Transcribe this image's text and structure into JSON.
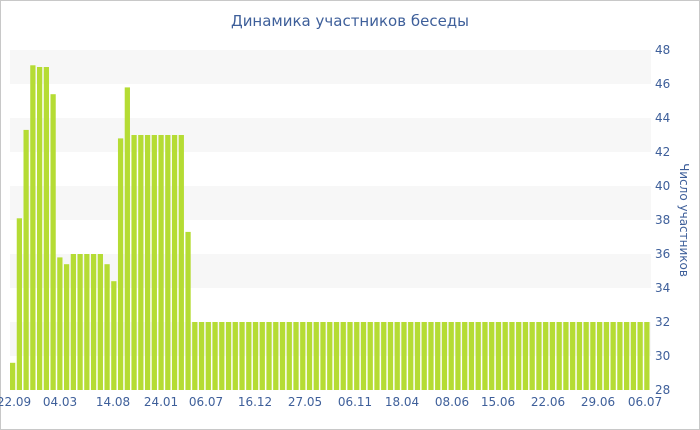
{
  "chart_data": {
    "type": "bar",
    "title": "Динамика участников беседы",
    "xlabel": "",
    "ylabel": "Число участников",
    "ylim": [
      28,
      48
    ],
    "yticks": [
      28,
      30,
      32,
      34,
      36,
      38,
      40,
      42,
      44,
      46,
      48
    ],
    "xtick_labels": [
      "22.09",
      "04.03",
      "14.08",
      "24.01",
      "06.07",
      "16.12",
      "27.05",
      "06.11",
      "18.04",
      "08.06",
      "15.06",
      "22.06",
      "29.06",
      "06.07"
    ],
    "grid": "horizontal alternating bands",
    "values": [
      29.6,
      38.1,
      43.3,
      47.1,
      47.0,
      47.0,
      45.4,
      35.8,
      35.4,
      36.0,
      36.0,
      36.0,
      36.0,
      36.0,
      35.4,
      34.4,
      42.8,
      45.8,
      43.0,
      43.0,
      43.0,
      43.0,
      43.0,
      43.0,
      43.0,
      43.0,
      37.3,
      32.0,
      32.0,
      32.0,
      32.0,
      32.0,
      32.0,
      32.0,
      32.0,
      32.0,
      32.0,
      32.0,
      32.0,
      32.0,
      32.0,
      32.0,
      32.0,
      32.0,
      32.0,
      32.0,
      32.0,
      32.0,
      32.0,
      32.0,
      32.0,
      32.0,
      32.0,
      32.0,
      32.0,
      32.0,
      32.0,
      32.0,
      32.0,
      32.0,
      32.0,
      32.0,
      32.0,
      32.0,
      32.0,
      32.0,
      32.0,
      32.0,
      32.0,
      32.0,
      32.0,
      32.0,
      32.0,
      32.0,
      32.0,
      32.0,
      32.0,
      32.0,
      32.0,
      32.0,
      32.0,
      32.0,
      32.0,
      32.0,
      32.0,
      32.0,
      32.0,
      32.0,
      32.0,
      32.0,
      32.0,
      32.0,
      32.0,
      32.0,
      32.0
    ],
    "colors": {
      "bar": "#b5dc34",
      "band": "#f7f7f7",
      "text": "#3e5f9a"
    }
  }
}
